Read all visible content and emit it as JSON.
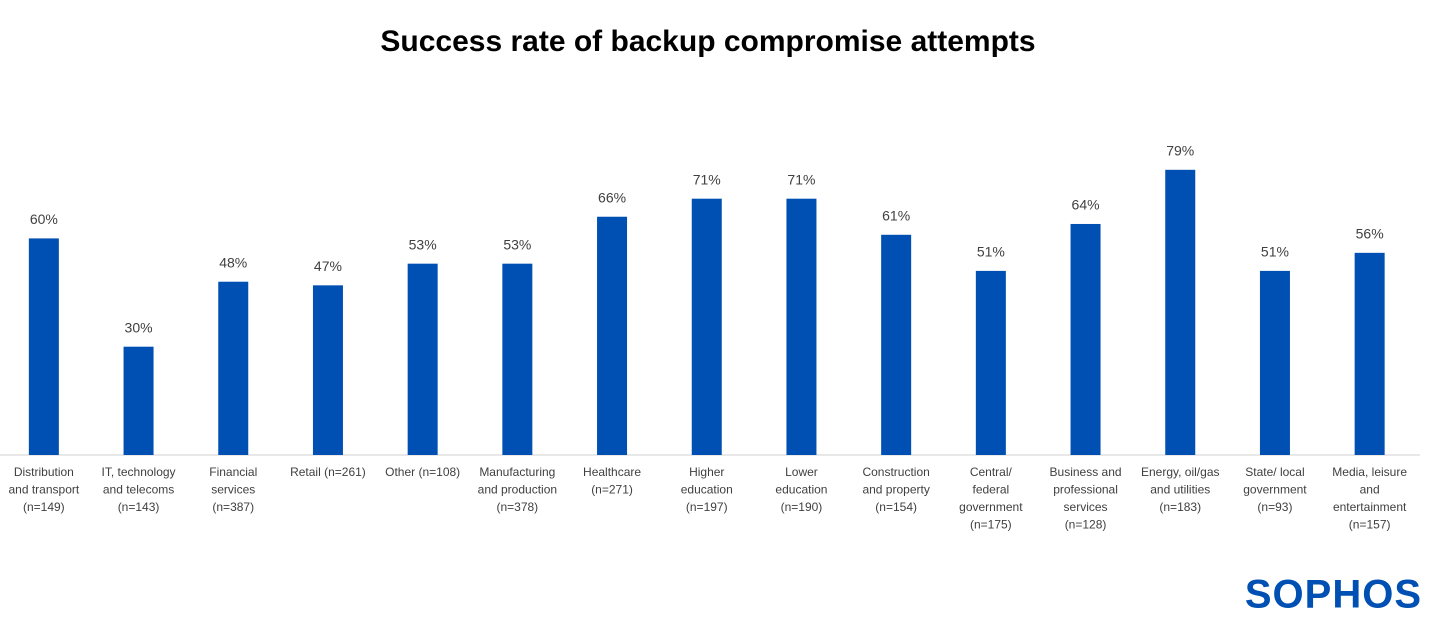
{
  "chart_data": {
    "type": "bar",
    "title": "Success rate of backup compromise attempts",
    "categories": [
      [
        "Distribution",
        "and transport",
        "(n=149)"
      ],
      [
        "IT, technology",
        "and telecoms",
        "(n=143)"
      ],
      [
        "Financial",
        "services",
        "(n=387)"
      ],
      [
        "Retail (n=261)"
      ],
      [
        "Other (n=108)"
      ],
      [
        "Manufacturing",
        "and production",
        "(n=378)"
      ],
      [
        "Healthcare",
        "(n=271)"
      ],
      [
        "Higher",
        "education",
        "(n=197)"
      ],
      [
        "Lower",
        "education",
        "(n=190)"
      ],
      [
        "Construction",
        "and property",
        "(n=154)"
      ],
      [
        "Central/",
        "federal",
        "government",
        "(n=175)"
      ],
      [
        "Business and",
        "professional",
        "services",
        "(n=128)"
      ],
      [
        "Energy, oil/gas",
        "and utilities",
        "(n=183)"
      ],
      [
        "State/ local",
        "government",
        "(n=93)"
      ],
      [
        "Media, leisure",
        "and",
        "entertainment",
        "(n=157)"
      ]
    ],
    "values": [
      60,
      30,
      48,
      47,
      53,
      53,
      66,
      71,
      71,
      61,
      51,
      64,
      79,
      51,
      56
    ],
    "value_labels": [
      "60%",
      "30%",
      "48%",
      "47%",
      "53%",
      "53%",
      "66%",
      "71%",
      "71%",
      "61%",
      "51%",
      "64%",
      "79%",
      "51%",
      "56%"
    ],
    "color": "#0050b3",
    "ylim": [
      0,
      100
    ]
  },
  "logo": "SOPHOS"
}
